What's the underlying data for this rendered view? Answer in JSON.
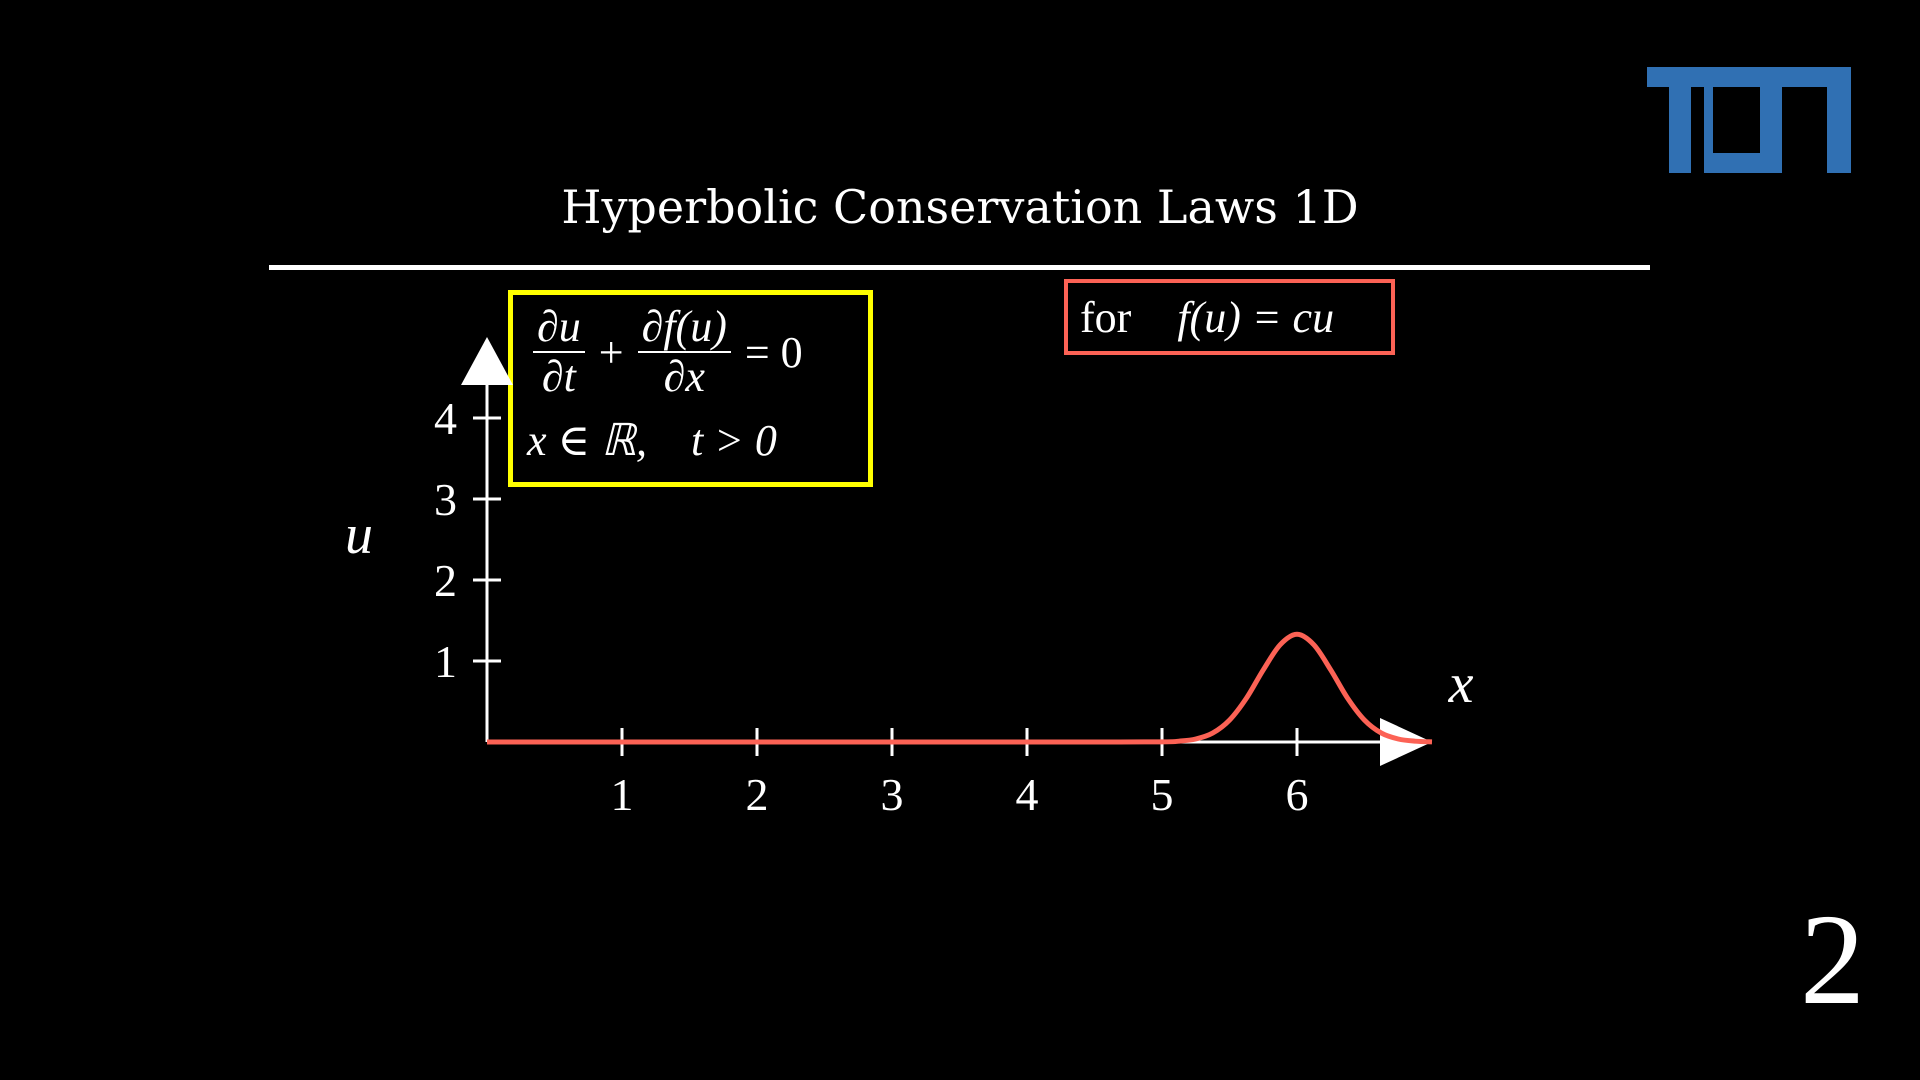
{
  "slide": {
    "title": "Hyperbolic Conservation Laws 1D",
    "page_number": "2",
    "logo_text": "TUM",
    "colors": {
      "background": "#000000",
      "logo": "#3070b3",
      "equation_box": "#ffff00",
      "flux_box": "#fc6255",
      "curve": "#fc6255",
      "axes": "#ffffff"
    }
  },
  "equation": {
    "frac1_num": "∂u",
    "frac1_den": "∂t",
    "plus": "+",
    "frac2_num": "∂f(u)",
    "frac2_den": "∂x",
    "equals": "= 0",
    "domain_x": "x ∈ ℝ,",
    "domain_t": "t > 0"
  },
  "flux": {
    "for_label": "for",
    "expression": "f(u) = cu"
  },
  "chart_data": {
    "type": "line",
    "xlabel": "x",
    "ylabel": "u",
    "xlim": [
      0,
      7
    ],
    "ylim": [
      0,
      5
    ],
    "xticks": [
      1,
      2,
      3,
      4,
      5,
      6
    ],
    "yticks": [
      1,
      2,
      3,
      4
    ],
    "grid": false,
    "series": [
      {
        "color": "#fc6255",
        "x": [
          0,
          1,
          2,
          3,
          4,
          4.5,
          5,
          5.125,
          5.25,
          5.375,
          5.5,
          5.625,
          5.75,
          5.875,
          6,
          6.125,
          6.25,
          6.375,
          6.5,
          6.625,
          6.75,
          6.875,
          7
        ],
        "y": [
          0,
          0,
          0,
          0,
          0,
          0,
          0.002,
          0.01,
          0.037,
          0.11,
          0.27,
          0.54,
          0.89,
          1.2,
          1.33,
          1.2,
          0.89,
          0.54,
          0.27,
          0.11,
          0.037,
          0.01,
          0.002
        ]
      }
    ]
  }
}
